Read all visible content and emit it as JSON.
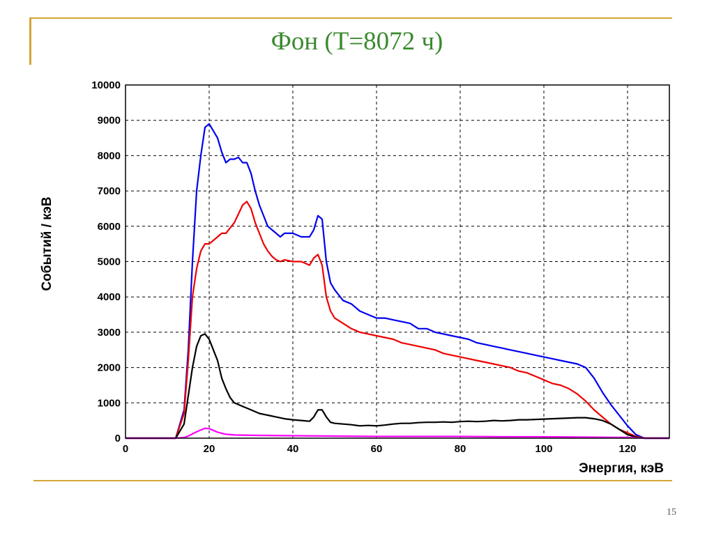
{
  "slide": {
    "title": "Фон (Т=8072 ч)",
    "page_number": "15"
  },
  "colors": {
    "accent": "#d4a437",
    "title": "#3a8a2e"
  },
  "chart_data": {
    "type": "line",
    "title": "",
    "xlabel": "Энергия, кэВ",
    "ylabel": "Событий / кэВ",
    "xlim": [
      0,
      130
    ],
    "ylim": [
      0,
      10000
    ],
    "xticks": [
      0,
      20,
      40,
      60,
      80,
      100,
      120
    ],
    "yticks": [
      0,
      1000,
      2000,
      3000,
      4000,
      5000,
      6000,
      7000,
      8000,
      9000,
      10000
    ],
    "grid": true,
    "series": [
      {
        "color": "#0000ee",
        "x": [
          0,
          12,
          14,
          15,
          16,
          17,
          18,
          19,
          20,
          21,
          22,
          23,
          24,
          25,
          26,
          27,
          28,
          29,
          30,
          31,
          32,
          33,
          34,
          35,
          36,
          37,
          38,
          40,
          42,
          44,
          45,
          46,
          47,
          48,
          49,
          50,
          52,
          54,
          56,
          58,
          60,
          62,
          64,
          66,
          68,
          70,
          72,
          74,
          76,
          78,
          80,
          82,
          84,
          86,
          88,
          90,
          92,
          94,
          96,
          98,
          100,
          102,
          104,
          106,
          108,
          110,
          112,
          114,
          116,
          118,
          120,
          122,
          124,
          126,
          130
        ],
        "y": [
          0,
          0,
          800,
          2500,
          5000,
          7000,
          8000,
          8800,
          8900,
          8700,
          8500,
          8100,
          7800,
          7900,
          7900,
          7950,
          7800,
          7800,
          7500,
          7000,
          6600,
          6300,
          6000,
          5900,
          5800,
          5700,
          5800,
          5800,
          5700,
          5700,
          5900,
          6300,
          6200,
          5000,
          4400,
          4200,
          3900,
          3800,
          3600,
          3500,
          3400,
          3400,
          3350,
          3300,
          3250,
          3100,
          3100,
          3000,
          2950,
          2900,
          2850,
          2800,
          2700,
          2650,
          2600,
          2550,
          2500,
          2450,
          2400,
          2350,
          2300,
          2250,
          2200,
          2150,
          2100,
          2000,
          1700,
          1300,
          950,
          650,
          350,
          100,
          0,
          0,
          0
        ]
      },
      {
        "color": "#ee0000",
        "x": [
          0,
          12,
          14,
          15,
          16,
          17,
          18,
          19,
          20,
          21,
          22,
          23,
          24,
          25,
          26,
          27,
          28,
          29,
          30,
          31,
          32,
          33,
          34,
          35,
          36,
          37,
          38,
          40,
          42,
          44,
          45,
          46,
          47,
          48,
          49,
          50,
          52,
          54,
          56,
          58,
          60,
          62,
          64,
          66,
          68,
          70,
          72,
          74,
          76,
          78,
          80,
          82,
          84,
          86,
          88,
          90,
          92,
          94,
          96,
          98,
          100,
          102,
          104,
          106,
          108,
          110,
          112,
          114,
          116,
          118,
          120,
          122,
          124,
          126,
          130
        ],
        "y": [
          0,
          0,
          700,
          2200,
          4000,
          4800,
          5300,
          5500,
          5500,
          5600,
          5700,
          5800,
          5800,
          5950,
          6100,
          6350,
          6600,
          6700,
          6500,
          6100,
          5800,
          5500,
          5300,
          5150,
          5050,
          5000,
          5050,
          5000,
          5000,
          4900,
          5100,
          5200,
          4900,
          4000,
          3600,
          3400,
          3250,
          3100,
          3000,
          2950,
          2900,
          2850,
          2800,
          2700,
          2650,
          2600,
          2550,
          2500,
          2400,
          2350,
          2300,
          2250,
          2200,
          2150,
          2100,
          2050,
          2000,
          1900,
          1850,
          1750,
          1650,
          1550,
          1500,
          1400,
          1250,
          1050,
          800,
          600,
          400,
          250,
          150,
          50,
          0,
          0,
          0
        ]
      },
      {
        "color": "#000000",
        "x": [
          0,
          12,
          14,
          15,
          16,
          17,
          18,
          19,
          20,
          21,
          22,
          23,
          24,
          25,
          26,
          28,
          30,
          32,
          34,
          36,
          38,
          40,
          42,
          44,
          45,
          46,
          47,
          48,
          49,
          50,
          52,
          54,
          56,
          58,
          60,
          62,
          64,
          66,
          68,
          70,
          72,
          74,
          76,
          78,
          80,
          82,
          84,
          86,
          88,
          90,
          92,
          94,
          96,
          98,
          100,
          102,
          104,
          106,
          108,
          110,
          112,
          114,
          116,
          118,
          120,
          122,
          124,
          126,
          130
        ],
        "y": [
          0,
          0,
          400,
          1200,
          2000,
          2600,
          2900,
          2950,
          2800,
          2500,
          2200,
          1700,
          1400,
          1150,
          1000,
          900,
          800,
          700,
          650,
          600,
          550,
          520,
          500,
          480,
          600,
          800,
          800,
          600,
          450,
          420,
          400,
          380,
          350,
          360,
          350,
          370,
          400,
          420,
          420,
          440,
          450,
          450,
          460,
          450,
          470,
          480,
          470,
          480,
          500,
          490,
          500,
          520,
          520,
          530,
          540,
          550,
          560,
          570,
          580,
          580,
          550,
          500,
          400,
          250,
          100,
          30,
          0,
          0,
          0
        ]
      },
      {
        "color": "#ff00ff",
        "x": [
          0,
          12,
          14,
          15,
          16,
          17,
          18,
          19,
          20,
          21,
          22,
          23,
          24,
          26,
          30,
          40,
          50,
          60,
          70,
          80,
          90,
          100,
          110,
          120,
          122,
          124,
          130
        ],
        "y": [
          0,
          0,
          20,
          60,
          120,
          180,
          230,
          280,
          270,
          220,
          170,
          140,
          110,
          90,
          80,
          70,
          60,
          50,
          50,
          50,
          40,
          40,
          30,
          20,
          10,
          0,
          0
        ]
      }
    ]
  }
}
